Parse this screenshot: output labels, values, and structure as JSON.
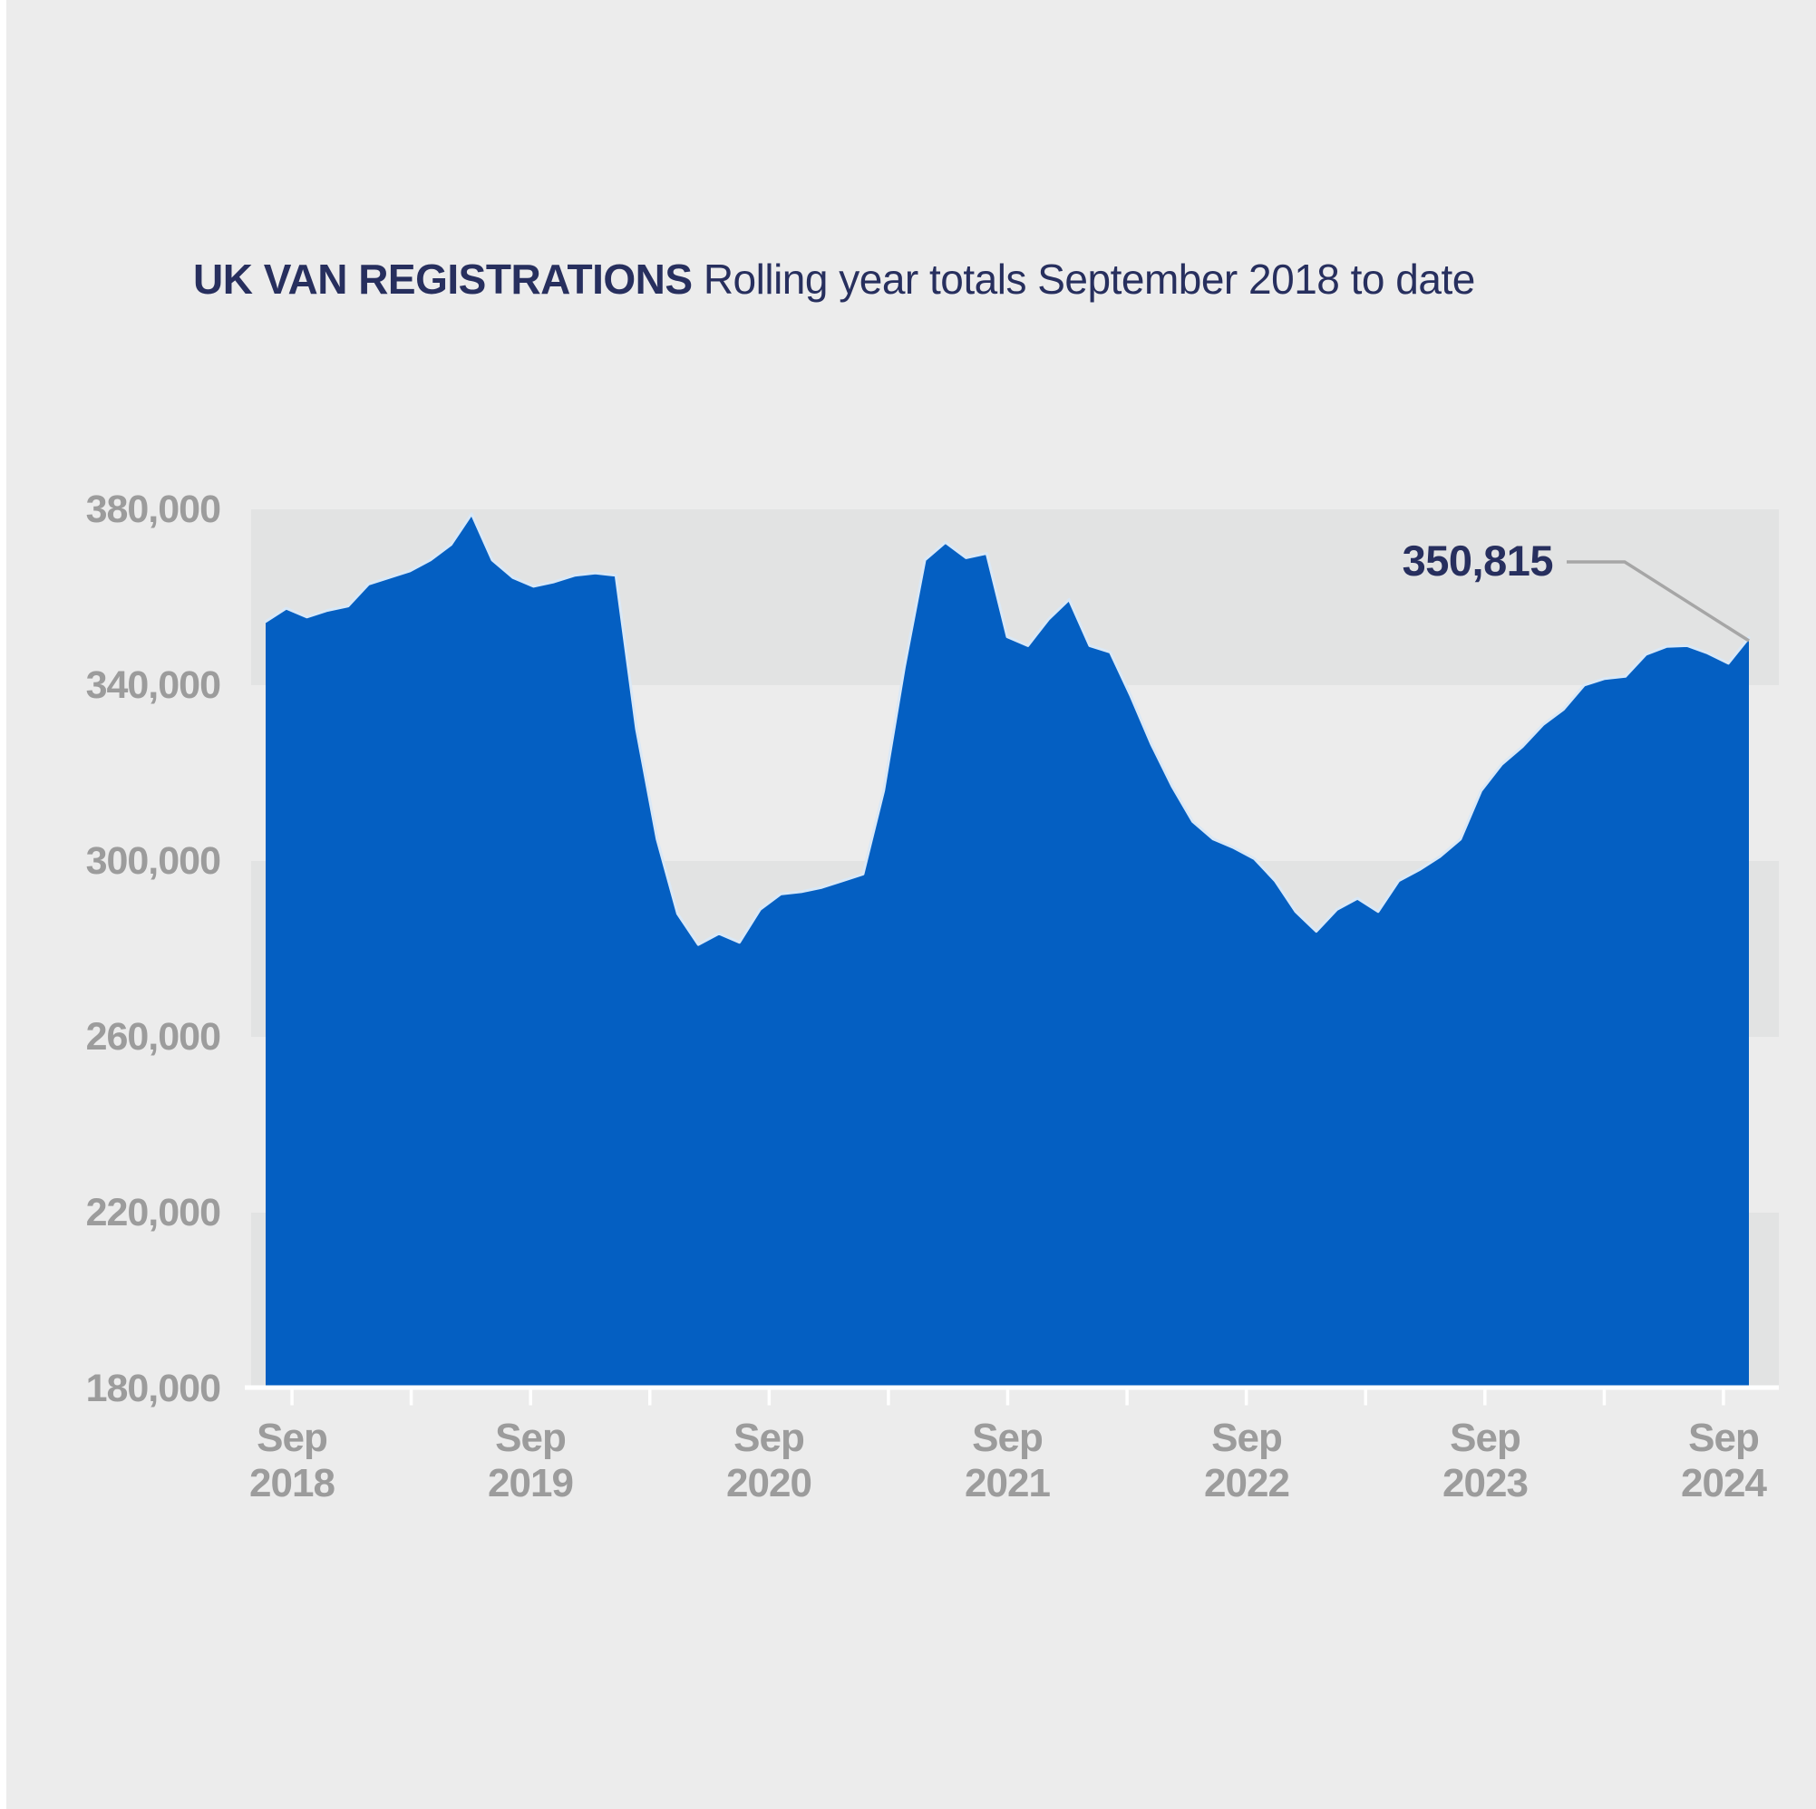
{
  "title": {
    "bold": "UK VAN REGISTRATIONS",
    "regular": "Rolling year totals September 2018 to date"
  },
  "annotation": {
    "label": "350,815"
  },
  "chart_data": {
    "type": "area",
    "title": "UK VAN REGISTRATIONS Rolling year totals September 2018 to date",
    "xlabel": "",
    "ylabel": "",
    "x_unit": "month",
    "x_start": "Sep 2018",
    "x_end": "Sep 2024",
    "x_ticks": [
      "Sep 2018",
      "Sep 2019",
      "Sep 2020",
      "Sep 2021",
      "Sep 2022",
      "Sep 2023",
      "Sep 2024"
    ],
    "y_ticks": [
      "380,000",
      "340,000",
      "300,000",
      "260,000",
      "220,000",
      "180,000"
    ],
    "y_tick_values": [
      380000,
      340000,
      300000,
      260000,
      220000,
      180000
    ],
    "ylim": [
      180000,
      400000
    ],
    "grid": "alternating horizontal bands, no gridlines",
    "legend": "none",
    "last_value_label": "350,815",
    "series": [
      {
        "name": "UK van registrations, rolling year total",
        "values": [
          354500,
          357500,
          355500,
          357000,
          358000,
          363000,
          364500,
          366000,
          368500,
          372000,
          379000,
          368500,
          364500,
          362500,
          363500,
          365000,
          365500,
          365000,
          330000,
          305000,
          288000,
          281000,
          283500,
          281500,
          289000,
          292500,
          293000,
          294000,
          295500,
          297000,
          316000,
          344000,
          368500,
          372500,
          369000,
          370000,
          351000,
          349000,
          355000,
          359500,
          349000,
          347500,
          337500,
          326500,
          317000,
          309000,
          305000,
          303000,
          300500,
          295500,
          288500,
          284000,
          289000,
          291500,
          288500,
          295500,
          298000,
          301000,
          305000,
          316000,
          322000,
          326000,
          331000,
          334500,
          340000,
          341500,
          342000,
          347000,
          348800,
          349000,
          347300,
          345000,
          350815
        ]
      }
    ],
    "colors": {
      "area": "#045FC2",
      "area_edge": "#D9E8F7",
      "band_dark": "#E2E3E3",
      "background": "#ECECEC",
      "axis_text": "#9C9C9C",
      "title_text": "#272F5E",
      "callout_line": "#A6A6A6",
      "axis_line": "#FFFFFF"
    }
  }
}
